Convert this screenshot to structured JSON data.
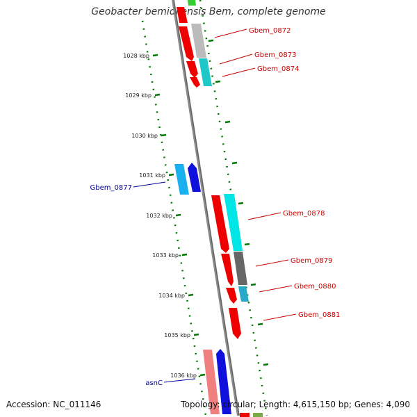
{
  "title": "Geobacter bemidjiensis Bem, complete genome",
  "footer": {
    "accession": "Accession: NC_011146",
    "topology": "Topology: circular; Length: 4,615,150 bp; Genes: 4,090"
  },
  "colors": {
    "forward_label": "#cc0000",
    "reverse_label": "#000099",
    "tick": "#007700",
    "backbone": "#8a8a8a"
  },
  "ruler": [
    {
      "label": "1028 kbp",
      "value": 1028
    },
    {
      "label": "1029 kbp",
      "value": 1029
    },
    {
      "label": "1030 kbp",
      "value": 1030
    },
    {
      "label": "1031 kbp",
      "value": 1031
    },
    {
      "label": "1032 kbp",
      "value": 1032
    },
    {
      "label": "1033 kbp",
      "value": 1033
    },
    {
      "label": "1034 kbp",
      "value": 1034
    },
    {
      "label": "1035 kbp",
      "value": 1035
    },
    {
      "label": "1036 kbp",
      "value": 1036
    }
  ],
  "gene_labels": [
    {
      "name": "Gbem_0872",
      "strand": "forward"
    },
    {
      "name": "Gbem_0873",
      "strand": "forward"
    },
    {
      "name": "Gbem_0874",
      "strand": "forward"
    },
    {
      "name": "Gbem_0877",
      "strand": "reverse"
    },
    {
      "name": "Gbem_0878",
      "strand": "forward"
    },
    {
      "name": "Gbem_0879",
      "strand": "forward"
    },
    {
      "name": "Gbem_0880",
      "strand": "forward"
    },
    {
      "name": "Gbem_0881",
      "strand": "forward"
    },
    {
      "name": "asnC",
      "strand": "reverse"
    }
  ]
}
